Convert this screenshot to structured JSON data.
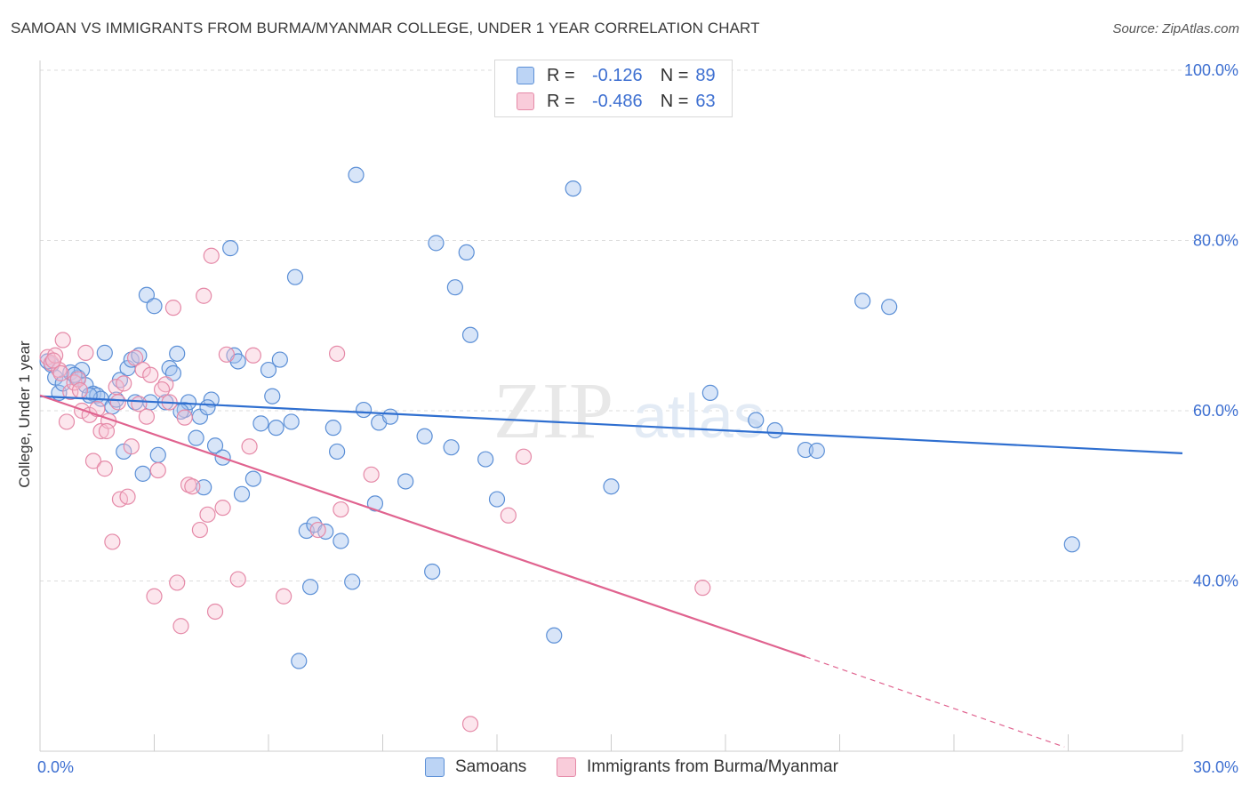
{
  "title": "SAMOAN VS IMMIGRANTS FROM BURMA/MYANMAR COLLEGE, UNDER 1 YEAR CORRELATION CHART",
  "source": "Source: ZipAtlas.com",
  "watermark": "ZIPatlas",
  "colors": {
    "blue_fill": "#a8c6f0",
    "blue_stroke": "#5b8fd6",
    "blue_line": "#2f6fd0",
    "pink_fill": "#f7c1d1",
    "pink_stroke": "#e58aa8",
    "pink_line": "#e0638f",
    "tick_text": "#3d6fd1",
    "grid": "#dddddd"
  },
  "legend_top": {
    "rows": [
      {
        "r_label": "R =",
        "r_value": "-0.126",
        "n_label": "N =",
        "n_value": "89"
      },
      {
        "r_label": "R =",
        "r_value": "-0.486",
        "n_label": "N =",
        "n_value": "63"
      }
    ]
  },
  "legend_bottom": {
    "items": [
      {
        "label": "Samoans"
      },
      {
        "label": "Immigrants from Burma/Myanmar"
      }
    ]
  },
  "chart_data": {
    "type": "scatter",
    "title": "SAMOAN VS IMMIGRANTS FROM BURMA/MYANMAR COLLEGE, UNDER 1 YEAR CORRELATION CHART",
    "xlabel": "",
    "ylabel": "College, Under 1 year",
    "xlim": [
      0,
      30
    ],
    "ylim": [
      20,
      100
    ],
    "x_tick_labels": [
      "0.0%",
      "30.0%"
    ],
    "y_ticks": [
      40,
      60,
      80,
      100
    ],
    "y_tick_labels": [
      "40.0%",
      "60.0%",
      "80.0%",
      "100.0%"
    ],
    "grid": true,
    "legend_position": "top-center",
    "series": [
      {
        "name": "Samoans",
        "r": -0.126,
        "n": 89,
        "trend": {
          "x": [
            0,
            30
          ],
          "y": [
            61.7,
            55.0
          ]
        },
        "points": [
          [
            0.3,
            65.4
          ],
          [
            0.4,
            63.9
          ],
          [
            0.5,
            62.1
          ],
          [
            0.6,
            63.2
          ],
          [
            0.8,
            64.5
          ],
          [
            1.0,
            63.9
          ],
          [
            1.1,
            64.8
          ],
          [
            1.2,
            63.0
          ],
          [
            1.4,
            62.0
          ],
          [
            1.5,
            61.8
          ],
          [
            1.6,
            61.4
          ],
          [
            1.7,
            66.8
          ],
          [
            1.9,
            60.5
          ],
          [
            2.1,
            63.6
          ],
          [
            2.2,
            55.2
          ],
          [
            2.3,
            65.0
          ],
          [
            2.4,
            66.0
          ],
          [
            2.5,
            61.0
          ],
          [
            2.6,
            66.5
          ],
          [
            2.7,
            52.6
          ],
          [
            2.8,
            73.6
          ],
          [
            2.9,
            61.0
          ],
          [
            3.0,
            72.3
          ],
          [
            3.1,
            54.8
          ],
          [
            3.3,
            61.0
          ],
          [
            3.4,
            65.0
          ],
          [
            3.5,
            64.4
          ],
          [
            3.6,
            66.7
          ],
          [
            3.8,
            60.1
          ],
          [
            3.9,
            61.0
          ],
          [
            4.1,
            56.8
          ],
          [
            4.2,
            59.3
          ],
          [
            4.3,
            51.0
          ],
          [
            4.5,
            61.3
          ],
          [
            4.6,
            55.9
          ],
          [
            4.8,
            54.5
          ],
          [
            5.0,
            79.1
          ],
          [
            5.1,
            66.5
          ],
          [
            5.2,
            65.8
          ],
          [
            5.3,
            50.2
          ],
          [
            5.6,
            52.0
          ],
          [
            5.8,
            58.5
          ],
          [
            6.0,
            64.8
          ],
          [
            6.1,
            61.7
          ],
          [
            6.3,
            66.0
          ],
          [
            6.6,
            58.7
          ],
          [
            6.7,
            75.7
          ],
          [
            6.8,
            30.6
          ],
          [
            7.0,
            45.9
          ],
          [
            7.1,
            39.3
          ],
          [
            7.2,
            46.6
          ],
          [
            7.5,
            45.8
          ],
          [
            7.7,
            58.0
          ],
          [
            7.8,
            55.2
          ],
          [
            7.9,
            44.7
          ],
          [
            8.2,
            39.9
          ],
          [
            8.3,
            87.7
          ],
          [
            8.5,
            60.1
          ],
          [
            8.8,
            49.1
          ],
          [
            8.9,
            58.6
          ],
          [
            9.2,
            59.3
          ],
          [
            9.6,
            51.7
          ],
          [
            10.1,
            57.0
          ],
          [
            10.3,
            41.1
          ],
          [
            10.4,
            79.7
          ],
          [
            10.8,
            55.7
          ],
          [
            10.9,
            74.5
          ],
          [
            11.3,
            68.9
          ],
          [
            11.2,
            78.6
          ],
          [
            12.0,
            49.6
          ],
          [
            11.7,
            54.3
          ],
          [
            13.5,
            33.6
          ],
          [
            14.0,
            86.1
          ],
          [
            15.0,
            51.1
          ],
          [
            17.6,
            62.1
          ],
          [
            18.8,
            58.9
          ],
          [
            19.3,
            57.7
          ],
          [
            20.1,
            55.4
          ],
          [
            20.4,
            55.3
          ],
          [
            21.6,
            72.9
          ],
          [
            22.3,
            72.2
          ],
          [
            27.1,
            44.3
          ],
          [
            0.2,
            65.8
          ],
          [
            1.3,
            61.8
          ],
          [
            2.0,
            61.3
          ],
          [
            3.7,
            59.9
          ],
          [
            4.4,
            60.4
          ],
          [
            6.2,
            58.0
          ],
          [
            0.9,
            64.2
          ]
        ]
      },
      {
        "name": "Immigrants from Burma/Myanmar",
        "r": -0.486,
        "n": 63,
        "trend": {
          "x": [
            0,
            20.1
          ],
          "y": [
            61.8,
            31.1
          ]
        },
        "trend_dashed": {
          "x": [
            20.1,
            26.9
          ],
          "y": [
            31.1,
            20.5
          ]
        },
        "points": [
          [
            0.2,
            66.3
          ],
          [
            0.3,
            65.6
          ],
          [
            0.4,
            66.5
          ],
          [
            0.5,
            64.8
          ],
          [
            0.6,
            68.3
          ],
          [
            0.7,
            58.7
          ],
          [
            0.8,
            62.2
          ],
          [
            0.9,
            63.3
          ],
          [
            1.0,
            63.7
          ],
          [
            1.1,
            60.0
          ],
          [
            1.2,
            66.8
          ],
          [
            1.3,
            59.5
          ],
          [
            1.4,
            54.1
          ],
          [
            1.5,
            60.2
          ],
          [
            1.6,
            57.6
          ],
          [
            1.7,
            53.2
          ],
          [
            1.8,
            58.8
          ],
          [
            1.9,
            44.6
          ],
          [
            2.0,
            62.8
          ],
          [
            2.1,
            49.6
          ],
          [
            2.2,
            63.2
          ],
          [
            2.3,
            49.9
          ],
          [
            2.4,
            55.8
          ],
          [
            2.5,
            66.2
          ],
          [
            2.6,
            60.8
          ],
          [
            2.7,
            64.8
          ],
          [
            2.8,
            59.3
          ],
          [
            2.9,
            64.2
          ],
          [
            3.0,
            38.2
          ],
          [
            3.1,
            53.0
          ],
          [
            3.3,
            63.1
          ],
          [
            3.5,
            72.1
          ],
          [
            3.6,
            39.8
          ],
          [
            3.7,
            34.7
          ],
          [
            3.8,
            59.2
          ],
          [
            3.9,
            51.3
          ],
          [
            4.0,
            51.1
          ],
          [
            4.2,
            46.0
          ],
          [
            4.3,
            73.5
          ],
          [
            4.4,
            47.8
          ],
          [
            4.5,
            78.2
          ],
          [
            4.6,
            36.4
          ],
          [
            4.8,
            48.6
          ],
          [
            4.9,
            66.6
          ],
          [
            5.2,
            40.2
          ],
          [
            5.5,
            55.8
          ],
          [
            5.6,
            66.5
          ],
          [
            6.4,
            38.2
          ],
          [
            7.3,
            46.0
          ],
          [
            7.8,
            66.7
          ],
          [
            7.9,
            48.4
          ],
          [
            8.7,
            52.5
          ],
          [
            11.3,
            23.2
          ],
          [
            12.3,
            47.7
          ],
          [
            12.7,
            54.6
          ],
          [
            17.4,
            39.2
          ],
          [
            0.35,
            65.9
          ],
          [
            1.05,
            62.4
          ],
          [
            2.05,
            61.0
          ],
          [
            3.2,
            62.5
          ],
          [
            3.4,
            61.0
          ],
          [
            0.55,
            64.4
          ],
          [
            1.75,
            57.6
          ]
        ]
      }
    ]
  }
}
